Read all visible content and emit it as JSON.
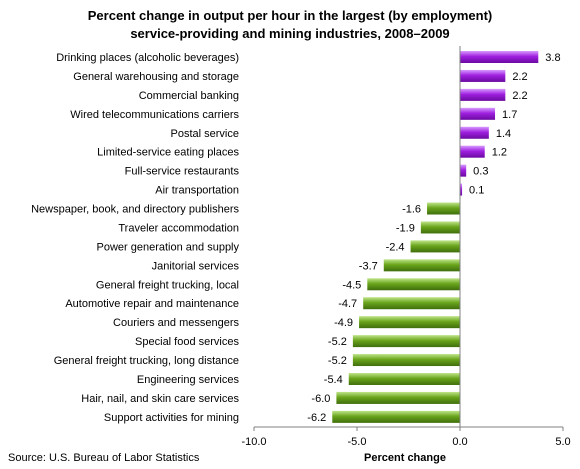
{
  "chart_data": {
    "type": "bar",
    "orientation": "horizontal",
    "title_lines": [
      "Percent change in output per hour in the largest (by employment)",
      "service-providing and mining industries, 2008–2009"
    ],
    "xlabel": "Percent change",
    "source": "Source: U.S. Bureau of Labor Statistics",
    "xlim": [
      -10.0,
      5.0
    ],
    "x_ticks": [
      {
        "value": -10,
        "label": "-10.0"
      },
      {
        "value": -5,
        "label": "-5.0"
      },
      {
        "value": 0,
        "label": "0.0"
      },
      {
        "value": 5,
        "label": "5.0"
      }
    ],
    "grid": false,
    "colors": {
      "positive": "#a020e0",
      "negative": "#6aa51c"
    },
    "categories": [
      "Drinking places (alcoholic beverages)",
      "General warehousing and storage",
      "Commercial banking",
      "Wired telecommunications carriers",
      "Postal service",
      "Limited-service eating places",
      "Full-service restaurants",
      "Air transportation",
      "Newspaper, book, and directory publishers",
      "Traveler accommodation",
      "Power generation and supply",
      "Janitorial services",
      "General freight trucking, local",
      "Automotive repair and maintenance",
      "Couriers and messengers",
      "Special food services",
      "General freight trucking, long distance",
      "Engineering services",
      "Hair, nail, and skin care services",
      "Support activities for mining"
    ],
    "values": [
      3.8,
      2.2,
      2.2,
      1.7,
      1.4,
      1.2,
      0.3,
      0.1,
      -1.6,
      -1.9,
      -2.4,
      -3.7,
      -4.5,
      -4.7,
      -4.9,
      -5.2,
      -5.2,
      -5.4,
      -6.0,
      -6.2
    ],
    "value_labels": [
      "3.8",
      "2.2",
      "2.2",
      "1.7",
      "1.4",
      "1.2",
      "0.3",
      "0.1",
      "-1.6",
      "-1.9",
      "-2.4",
      "-3.7",
      "-4.5",
      "-4.7",
      "-4.9",
      "-5.2",
      "-5.2",
      "-5.4",
      "-6.0",
      "-6.2"
    ]
  }
}
